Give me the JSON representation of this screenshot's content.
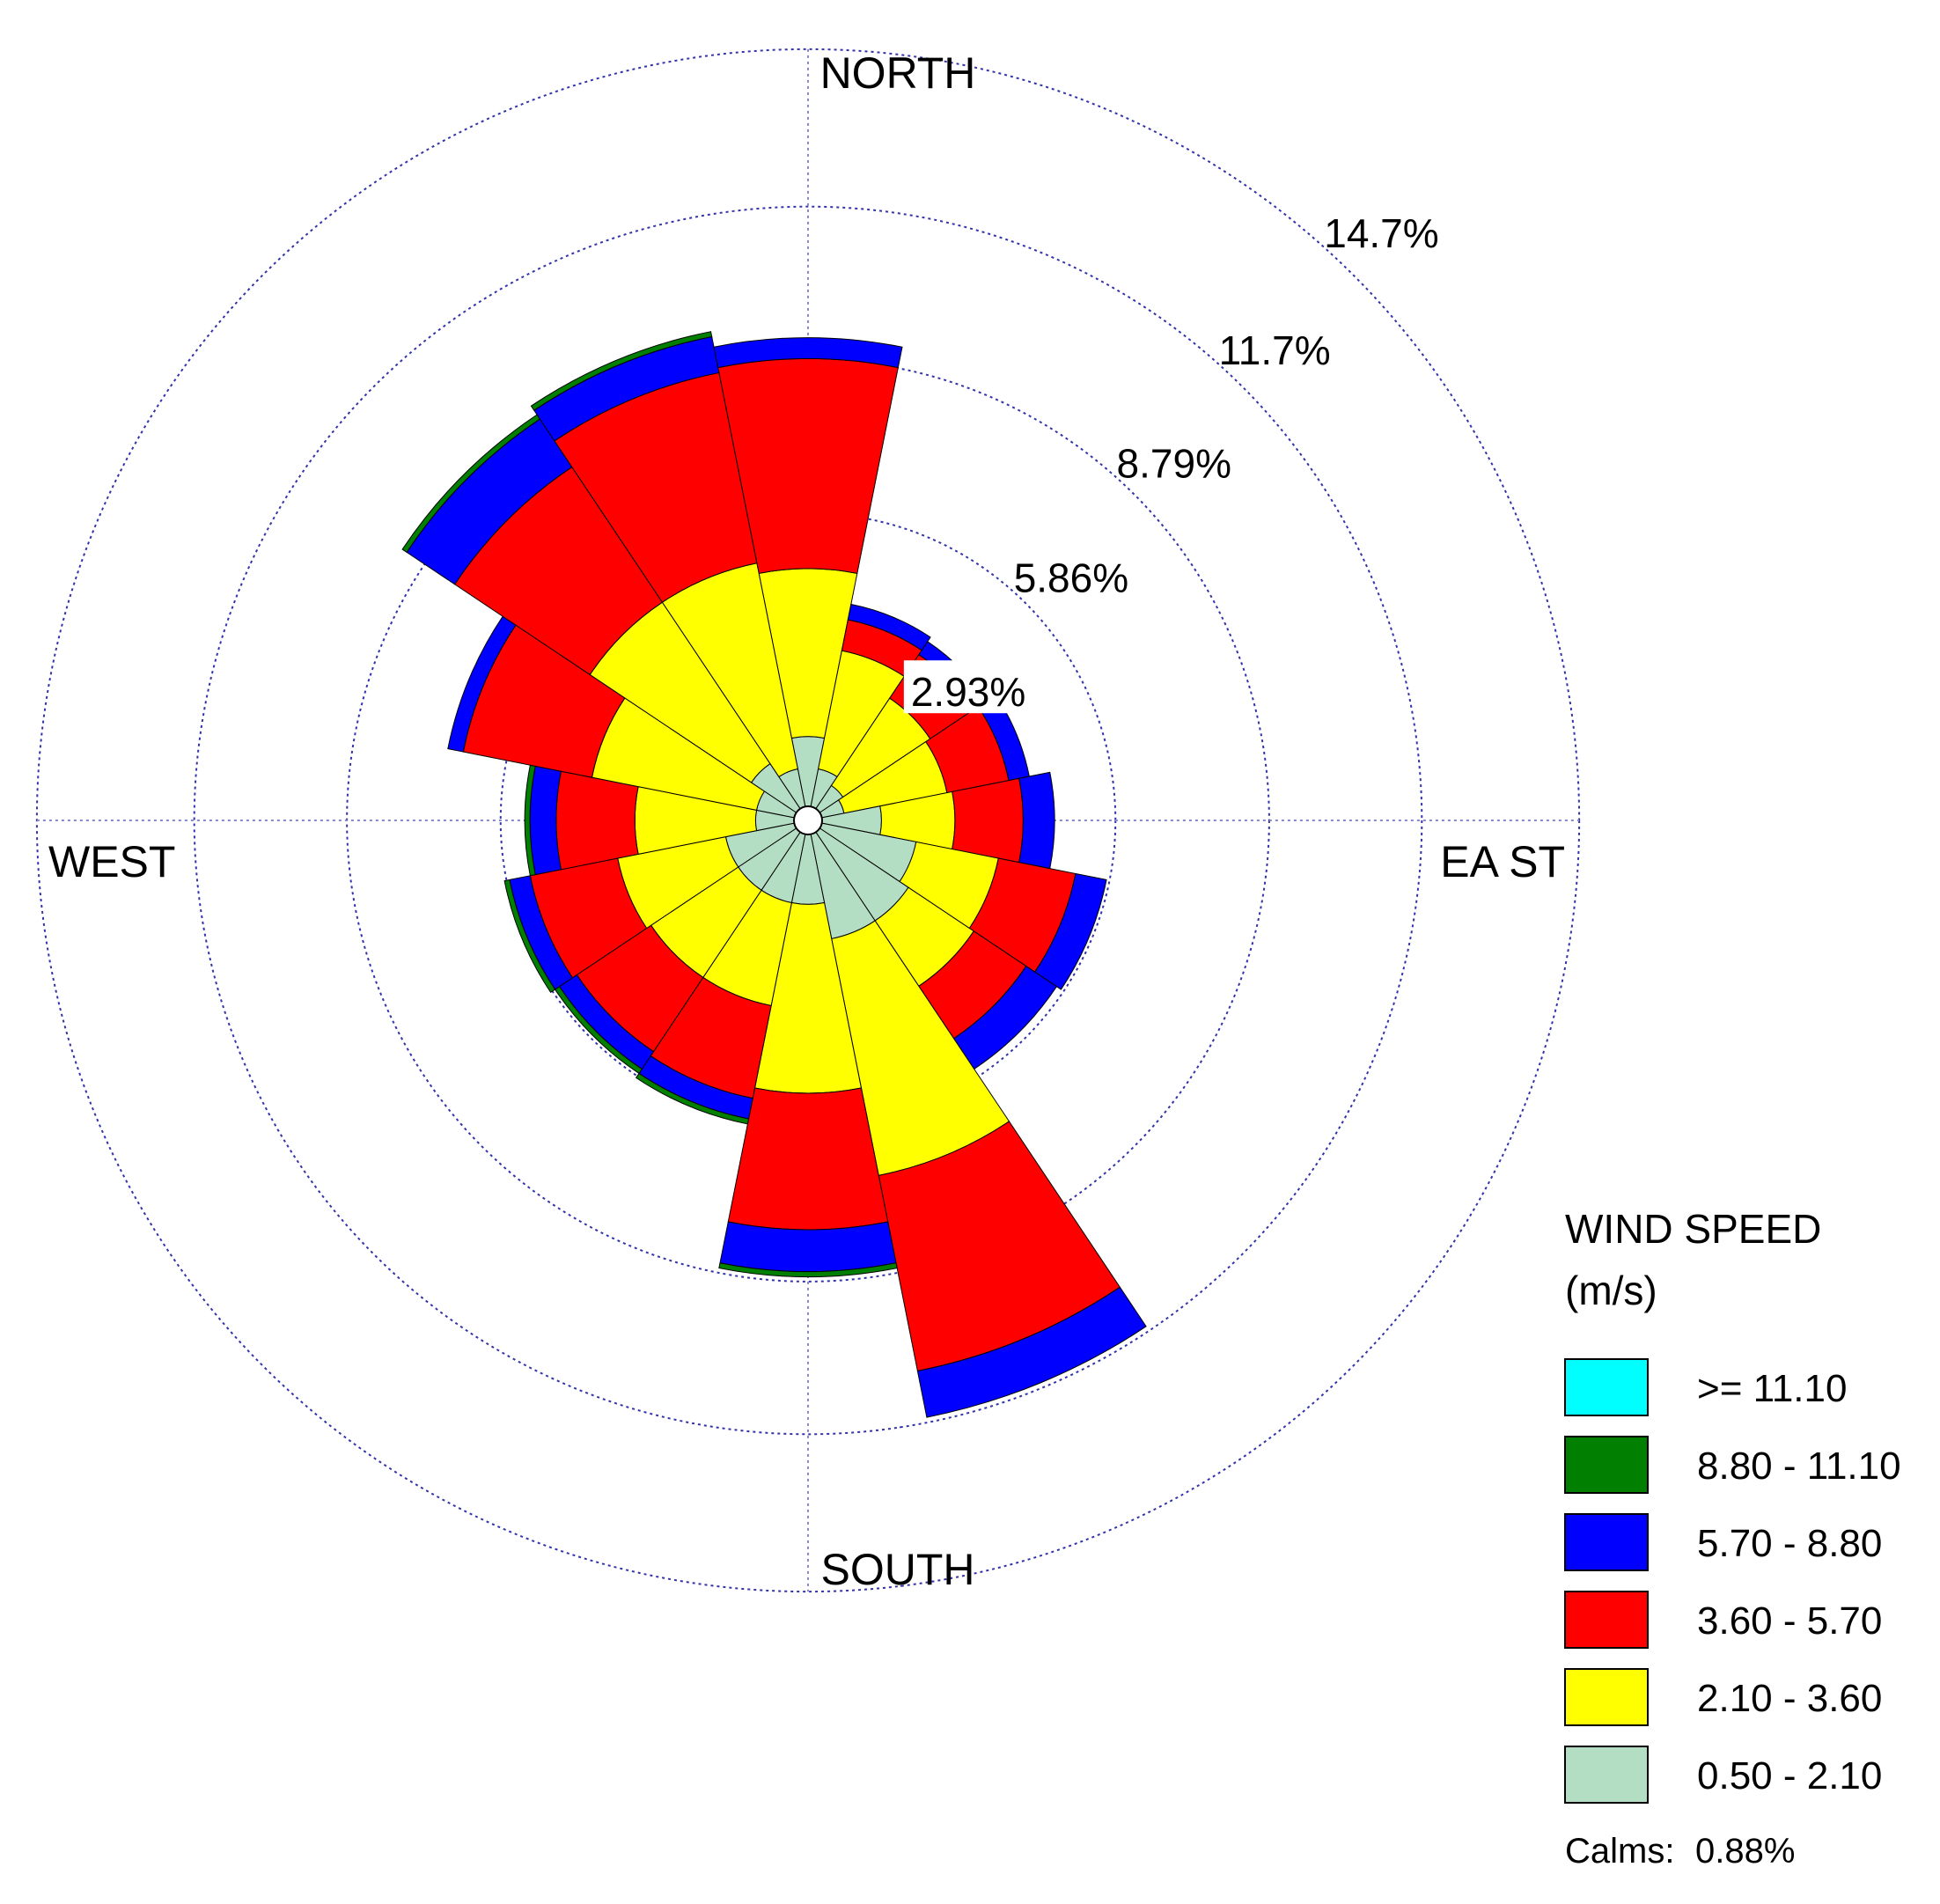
{
  "chart_data": {
    "type": "wind_rose",
    "directions": [
      "N",
      "NNE",
      "NE",
      "ENE",
      "E",
      "ESE",
      "SE",
      "SSE",
      "S",
      "SSW",
      "SW",
      "WSW",
      "W",
      "WNW",
      "NW",
      "NNW"
    ],
    "compass_labels": {
      "north": "NORTH",
      "east": "EA ST",
      "south": "SOUTH",
      "west": "WEST"
    },
    "radial_unit": "percent frequency",
    "rings": [
      {
        "value": 2.93,
        "label": "2.93%"
      },
      {
        "value": 5.86,
        "label": "5.86%"
      },
      {
        "value": 8.79,
        "label": "8.79%"
      },
      {
        "value": 11.7,
        "label": "11.7%"
      },
      {
        "value": 14.7,
        "label": "14.7%"
      }
    ],
    "legend": {
      "title_line1": "WIND SPEED",
      "title_line2": "(m/s)",
      "bins": [
        {
          "label": ">= 11.10",
          "color": "#00ffff"
        },
        {
          "label": "8.80 - 11.10",
          "color": "#007f00"
        },
        {
          "label": "5.70 - 8.80",
          "color": "#0000ff"
        },
        {
          "label": "3.60 - 5.70",
          "color": "#ff0000"
        },
        {
          "label": "2.10 - 3.60",
          "color": "#ffff00"
        },
        {
          "label": "0.50 - 2.10",
          "color": "#b3dec3"
        }
      ]
    },
    "calms_label": "Calms:",
    "calms_value": "0.88%",
    "calms_percent": 0.88,
    "series_order_inner_to_outer": [
      "0.50 - 2.10",
      "2.10 - 3.60",
      "3.60 - 5.70",
      "5.70 - 8.80",
      "8.80 - 11.10",
      ">= 11.10"
    ],
    "cumulative_percent_by_direction": {
      "N": [
        1.6,
        4.8,
        8.8,
        9.2,
        9.2,
        9.2
      ],
      "NNE": [
        1.0,
        3.3,
        3.9,
        4.2,
        4.2,
        4.2
      ],
      "NE": [
        0.8,
        2.8,
        3.8,
        4.1,
        4.1,
        4.1
      ],
      "ENE": [
        0.7,
        2.7,
        3.9,
        4.3,
        4.3,
        4.3
      ],
      "E": [
        1.4,
        2.8,
        4.1,
        4.7,
        4.7,
        4.7
      ],
      "ESE": [
        2.1,
        3.7,
        5.2,
        5.8,
        5.8,
        5.8
      ],
      "SE": [
        2.3,
        3.8,
        5.0,
        5.7,
        5.7,
        5.7
      ],
      "SSE": [
        2.3,
        6.9,
        10.7,
        11.6,
        11.6,
        11.6
      ],
      "S": [
        1.6,
        5.2,
        7.8,
        8.6,
        8.7,
        8.7
      ],
      "SSW": [
        1.6,
        3.6,
        5.4,
        5.8,
        5.9,
        5.9
      ],
      "SW": [
        1.6,
        3.6,
        5.3,
        5.7,
        5.8,
        5.8
      ],
      "WSW": [
        1.6,
        3.7,
        5.4,
        5.8,
        5.9,
        5.9
      ],
      "W": [
        1.0,
        3.3,
        4.8,
        5.3,
        5.4,
        5.4
      ],
      "WNW": [
        1.0,
        4.2,
        6.7,
        7.0,
        7.0,
        7.0
      ],
      "NW": [
        1.3,
        5.0,
        8.1,
        9.2,
        9.3,
        9.3
      ],
      "NNW": [
        1.0,
        5.0,
        8.7,
        9.4,
        9.5,
        9.5
      ]
    }
  }
}
